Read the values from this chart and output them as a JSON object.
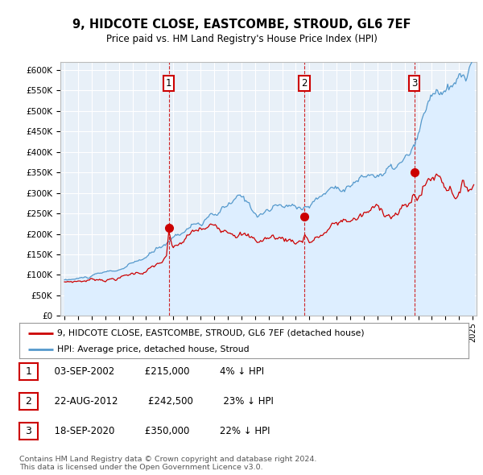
{
  "title": "9, HIDCOTE CLOSE, EASTCOMBE, STROUD, GL6 7EF",
  "subtitle": "Price paid vs. HM Land Registry's House Price Index (HPI)",
  "legend_property": "9, HIDCOTE CLOSE, EASTCOMBE, STROUD, GL6 7EF (detached house)",
  "legend_hpi": "HPI: Average price, detached house, Stroud",
  "transactions": [
    {
      "num": 1,
      "date_decimal": 2002.67,
      "price": 215000,
      "label": "03-SEP-2002",
      "pct": "4%",
      "dir": "↓"
    },
    {
      "num": 2,
      "date_decimal": 2012.63,
      "price": 242500,
      "label": "22-AUG-2012",
      "pct": "23%",
      "dir": "↓"
    },
    {
      "num": 3,
      "date_decimal": 2020.71,
      "price": 350000,
      "label": "18-SEP-2020",
      "pct": "22%",
      "dir": "↓"
    }
  ],
  "property_color": "#cc0000",
  "hpi_color": "#5599cc",
  "hpi_fill_color": "#ddeeff",
  "vline_color": "#cc0000",
  "annotation_box_edgecolor": "#cc0000",
  "ylim": [
    0,
    620000
  ],
  "yticks": [
    0,
    50000,
    100000,
    150000,
    200000,
    250000,
    300000,
    350000,
    400000,
    450000,
    500000,
    550000,
    600000
  ],
  "xlim_start": 1994.7,
  "xlim_end": 2025.3,
  "background_color": "#ffffff",
  "plot_bg_color": "#e8f0f8",
  "grid_color": "#ffffff",
  "footer": "Contains HM Land Registry data © Crown copyright and database right 2024.\nThis data is licensed under the Open Government Licence v3.0."
}
